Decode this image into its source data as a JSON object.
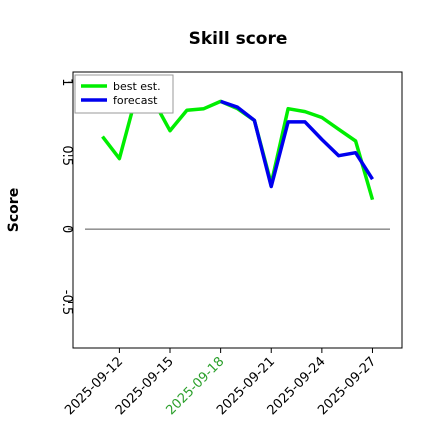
{
  "chart_data": {
    "type": "line",
    "title": "Skill score",
    "ylabel": "Score",
    "x": [
      "2025-09-11",
      "2025-09-12",
      "2025-09-13",
      "2025-09-14",
      "2025-09-15",
      "2025-09-16",
      "2025-09-17",
      "2025-09-18",
      "2025-09-19",
      "2025-09-20",
      "2025-09-21",
      "2025-09-22",
      "2025-09-23",
      "2025-09-24",
      "2025-09-25",
      "2025-09-26",
      "2025-09-27"
    ],
    "series": [
      {
        "name": "best est.",
        "color": "#00ee00",
        "values": [
          0.63,
          0.48,
          0.91,
          0.88,
          0.67,
          0.81,
          0.82,
          0.87,
          0.82,
          0.74,
          0.31,
          0.82,
          0.8,
          0.76,
          0.68,
          0.6,
          0.2
        ]
      },
      {
        "name": "forecast",
        "color": "#0000ee",
        "values": [
          null,
          null,
          null,
          null,
          null,
          null,
          null,
          0.87,
          0.83,
          0.74,
          0.29,
          0.73,
          0.73,
          0.61,
          0.5,
          0.52,
          0.34
        ]
      }
    ],
    "hline": 0.0,
    "xlim": [
      "2025-09-09T06:00",
      "2025-09-28T18:00"
    ],
    "xticks": [
      "2025-09-12",
      "2025-09-15",
      "2025-09-18",
      "2025-09-21",
      "2025-09-24",
      "2025-09-27"
    ],
    "xtick_label_colors": [
      "#000000",
      "#000000",
      "#2ca02c",
      "#000000",
      "#000000",
      "#000000"
    ],
    "ylim": [
      -0.81,
      1.07
    ],
    "yticks": [
      -0.5,
      0.0,
      0.5,
      1.0
    ],
    "legend": "upper left"
  }
}
